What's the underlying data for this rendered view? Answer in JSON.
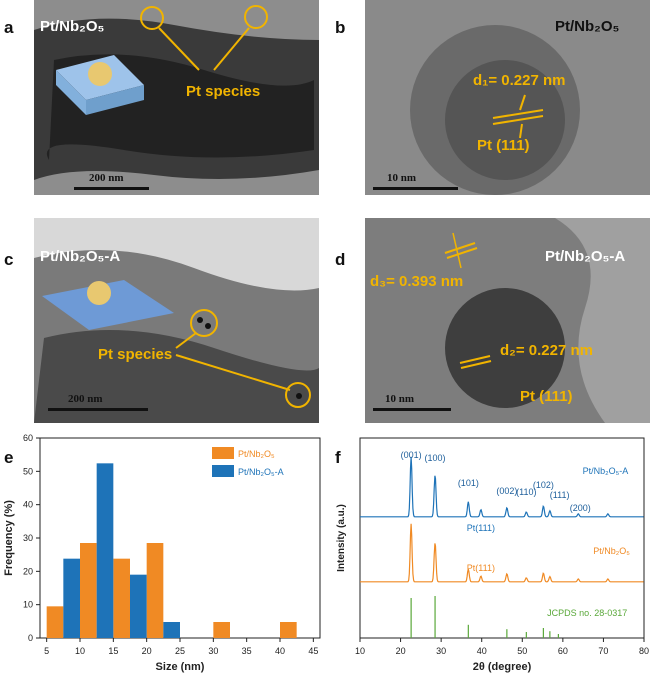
{
  "colors": {
    "accent": "#f1b400",
    "orange": "#f08a24",
    "blue": "#1e73b8",
    "green": "#5aa83a"
  },
  "panels": {
    "a": {
      "letter": "a",
      "title": "Pt/Nb₂O₅",
      "label": "Pt species",
      "scale": "200 nm"
    },
    "b": {
      "letter": "b",
      "title": "Pt/Nb₂O₅",
      "d": "d₁= 0.227 nm",
      "plane": "Pt (111)",
      "scale": "10 nm"
    },
    "c": {
      "letter": "c",
      "title": "Pt/Nb₂O₅-A",
      "label": "Pt species",
      "scale": "200 nm"
    },
    "d": {
      "letter": "d",
      "title": "Pt/Nb₂O₅-A",
      "d3": "d₃= 0.393 nm",
      "d2": "d₂= 0.227 nm",
      "plane": "Pt (111)",
      "scale": "10 nm"
    },
    "e": {
      "letter": "e"
    },
    "f": {
      "letter": "f"
    }
  },
  "chart_data": [
    {
      "type": "bar",
      "xlabel": "Size (nm)",
      "ylabel": "Frequency (%)",
      "xlim": [
        4,
        46
      ],
      "ylim": [
        0,
        60
      ],
      "xticks": [
        5,
        10,
        15,
        20,
        25,
        30,
        35,
        40,
        45
      ],
      "yticks": [
        0,
        10,
        20,
        30,
        40,
        50,
        60
      ],
      "legend_position": "top-right",
      "series": [
        {
          "name": "Pt/Nb₂O₅",
          "color": "#f08a24",
          "bins": [
            [
              5,
              7.5
            ],
            [
              10,
              12.5
            ],
            [
              15,
              17.5
            ],
            [
              20,
              22.5
            ],
            [
              30,
              32.5
            ],
            [
              40,
              42.5
            ]
          ],
          "values": [
            9.5,
            28.5,
            23.8,
            28.5,
            4.8,
            4.8
          ]
        },
        {
          "name": "Pt/Nb₂O₅-A",
          "color": "#1e73b8",
          "bins": [
            [
              7.5,
              10
            ],
            [
              12.5,
              15
            ],
            [
              17.5,
              20
            ],
            [
              22.5,
              25
            ]
          ],
          "values": [
            23.8,
            52.4,
            19.0,
            4.8
          ]
        }
      ]
    },
    {
      "type": "line",
      "xlabel": "2θ (degree)",
      "ylabel": "Intensity (a.u.)",
      "xlim": [
        10,
        80
      ],
      "xticks": [
        10,
        20,
        30,
        40,
        50,
        60,
        70,
        80
      ],
      "series": [
        {
          "name": "Pt/Nb₂O₅-A",
          "color": "#1e73b8",
          "peaks": [
            [
              22.6,
              100
            ],
            [
              28.5,
              70
            ],
            [
              36.7,
              25
            ],
            [
              39.8,
              12
            ],
            [
              46.2,
              15
            ],
            [
              51.0,
              8
            ],
            [
              55.2,
              18
            ],
            [
              56.8,
              10
            ],
            [
              63.8,
              5
            ],
            [
              71.1,
              5
            ]
          ]
        },
        {
          "name": "Pt/Nb₂O₅",
          "color": "#f08a24",
          "peaks": [
            [
              22.6,
              100
            ],
            [
              28.5,
              68
            ],
            [
              36.7,
              22
            ],
            [
              39.8,
              10
            ],
            [
              46.2,
              14
            ],
            [
              51.0,
              7
            ],
            [
              55.2,
              15
            ],
            [
              56.8,
              9
            ],
            [
              63.8,
              5
            ],
            [
              71.1,
              5
            ]
          ]
        },
        {
          "name": "JCPDS no. 28-0317",
          "color": "#5aa83a",
          "sticks": [
            [
              22.6,
              100
            ],
            [
              28.5,
              105
            ],
            [
              36.7,
              33
            ],
            [
              46.2,
              22
            ],
            [
              51.0,
              15
            ],
            [
              55.2,
              25
            ],
            [
              56.8,
              17
            ],
            [
              58.9,
              10
            ]
          ]
        }
      ],
      "peak_labels": [
        "(001)",
        "(100)",
        "(101)",
        "(002)",
        "(110)",
        "(102)",
        "(111)",
        "(200)"
      ],
      "pt_label": "Pt(111)"
    }
  ]
}
